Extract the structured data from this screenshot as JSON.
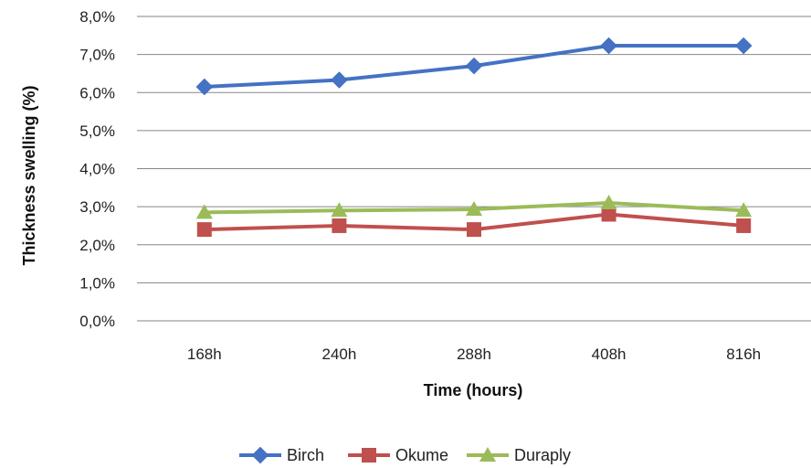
{
  "chart_data": {
    "type": "line",
    "categories": [
      "168h",
      "240h",
      "288h",
      "408h",
      "816h"
    ],
    "series": [
      {
        "name": "Birch",
        "values": [
          6.15,
          6.33,
          6.7,
          7.23,
          7.23
        ],
        "color": "#4472C4",
        "marker": "diamond"
      },
      {
        "name": "Okume",
        "values": [
          2.4,
          2.5,
          2.4,
          2.8,
          2.5
        ],
        "color": "#C0504D",
        "marker": "square"
      },
      {
        "name": "Duraply",
        "values": [
          2.85,
          2.9,
          2.93,
          3.1,
          2.9
        ],
        "color": "#9BBB59",
        "marker": "triangle"
      }
    ],
    "xlabel": "Time (hours)",
    "ylabel": "Thickness swelling (%)",
    "ylim": [
      0,
      8
    ],
    "yticks": [
      "0,0%",
      "1,0%",
      "2,0%",
      "3,0%",
      "4,0%",
      "5,0%",
      "6,0%",
      "7,0%",
      "8,0%"
    ],
    "grid": true,
    "legend": "bottom"
  }
}
